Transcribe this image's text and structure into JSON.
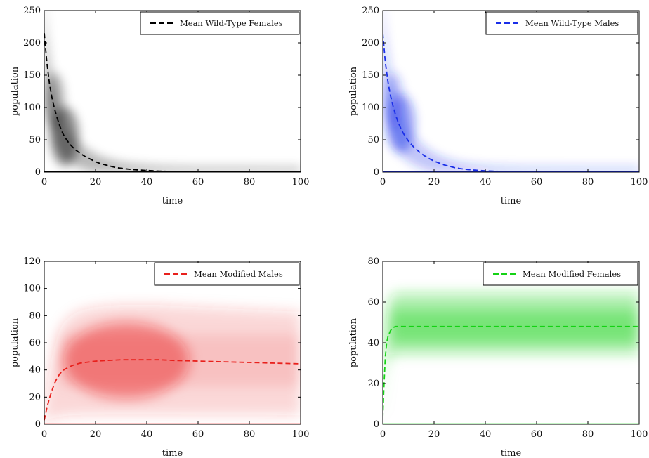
{
  "chart_data": [
    {
      "type": "line",
      "xlabel": "time",
      "ylabel": "population",
      "xlim": [
        0,
        100
      ],
      "ylim": [
        0,
        250
      ],
      "xticks": [
        0,
        20,
        40,
        60,
        80,
        100
      ],
      "yticks": [
        0,
        50,
        100,
        150,
        200,
        250
      ],
      "legend_position": "top-right",
      "color": "#000000",
      "band": "density shading around mean",
      "series": [
        {
          "name": "Mean Wild-Type Females",
          "x": [
            0,
            1,
            2,
            3,
            4,
            5,
            6,
            7,
            8,
            10,
            12,
            14,
            16,
            18,
            20,
            22,
            24,
            26,
            28,
            30,
            33,
            36,
            40,
            45,
            50,
            55,
            60,
            70,
            80,
            90,
            100
          ],
          "y": [
            215,
            170,
            138,
            115,
            98,
            84,
            72,
            62,
            54,
            43,
            35,
            29,
            24,
            20,
            16,
            13,
            11,
            9,
            7,
            6,
            4.5,
            3.5,
            2.5,
            1.5,
            1,
            0.7,
            0.5,
            0.3,
            0.2,
            0.1,
            0.1
          ]
        }
      ]
    },
    {
      "type": "line",
      "xlabel": "time",
      "ylabel": "population",
      "xlim": [
        0,
        100
      ],
      "ylim": [
        0,
        250
      ],
      "xticks": [
        0,
        20,
        40,
        60,
        80,
        100
      ],
      "yticks": [
        0,
        50,
        100,
        150,
        200,
        250
      ],
      "legend_position": "top-right",
      "color": "#1a2ee8",
      "band": "density shading around mean",
      "series": [
        {
          "name": "Mean Wild-Type Males",
          "x": [
            0,
            1,
            2,
            3,
            4,
            5,
            6,
            7,
            8,
            10,
            12,
            14,
            16,
            18,
            20,
            22,
            24,
            26,
            28,
            30,
            33,
            36,
            40,
            45,
            50,
            55,
            60,
            70,
            80,
            90,
            100
          ],
          "y": [
            215,
            170,
            140,
            118,
            102,
            88,
            77,
            68,
            60,
            48,
            39,
            32,
            26,
            21,
            17,
            14,
            11,
            9,
            7,
            5.5,
            4,
            3,
            2,
            1.2,
            0.8,
            0.5,
            0.3,
            0.2,
            0.1,
            0.1,
            0.1
          ]
        }
      ]
    },
    {
      "type": "line",
      "xlabel": "time",
      "ylabel": "population",
      "xlim": [
        0,
        100
      ],
      "ylim": [
        0,
        120
      ],
      "xticks": [
        0,
        20,
        40,
        60,
        80,
        100
      ],
      "yticks": [
        0,
        20,
        40,
        60,
        80,
        100,
        120
      ],
      "legend_position": "top-right",
      "color": "#e8201c",
      "band": "density shading around mean",
      "series": [
        {
          "name": "Mean Modified Males",
          "x": [
            0,
            1,
            2,
            3,
            4,
            5,
            6,
            7,
            8,
            10,
            12,
            14,
            16,
            18,
            20,
            25,
            30,
            35,
            40,
            45,
            50,
            60,
            70,
            80,
            90,
            100
          ],
          "y": [
            3,
            12,
            19,
            25,
            30,
            34,
            37,
            39,
            40.5,
            42.5,
            44,
            45,
            45.5,
            46,
            46.5,
            47,
            47.5,
            47.5,
            47.5,
            47.5,
            47,
            46.5,
            46,
            45.5,
            45,
            44.5
          ]
        }
      ]
    },
    {
      "type": "line",
      "xlabel": "time",
      "ylabel": "population",
      "xlim": [
        0,
        100
      ],
      "ylim": [
        0,
        80
      ],
      "xticks": [
        0,
        20,
        40,
        60,
        80,
        100
      ],
      "yticks": [
        0,
        20,
        40,
        60,
        80
      ],
      "legend_position": "top-right",
      "color": "#14d214",
      "band": "density shading around mean",
      "series": [
        {
          "name": "Mean Modified Females",
          "x": [
            0,
            0.5,
            1,
            1.5,
            2,
            3,
            4,
            5,
            6,
            8,
            10,
            20,
            30,
            40,
            50,
            60,
            70,
            80,
            90,
            100
          ],
          "y": [
            3,
            20,
            33,
            40,
            43,
            46,
            47.5,
            48,
            48,
            48,
            48,
            48,
            48,
            48,
            48,
            48,
            48,
            48,
            48,
            48
          ]
        }
      ]
    }
  ]
}
